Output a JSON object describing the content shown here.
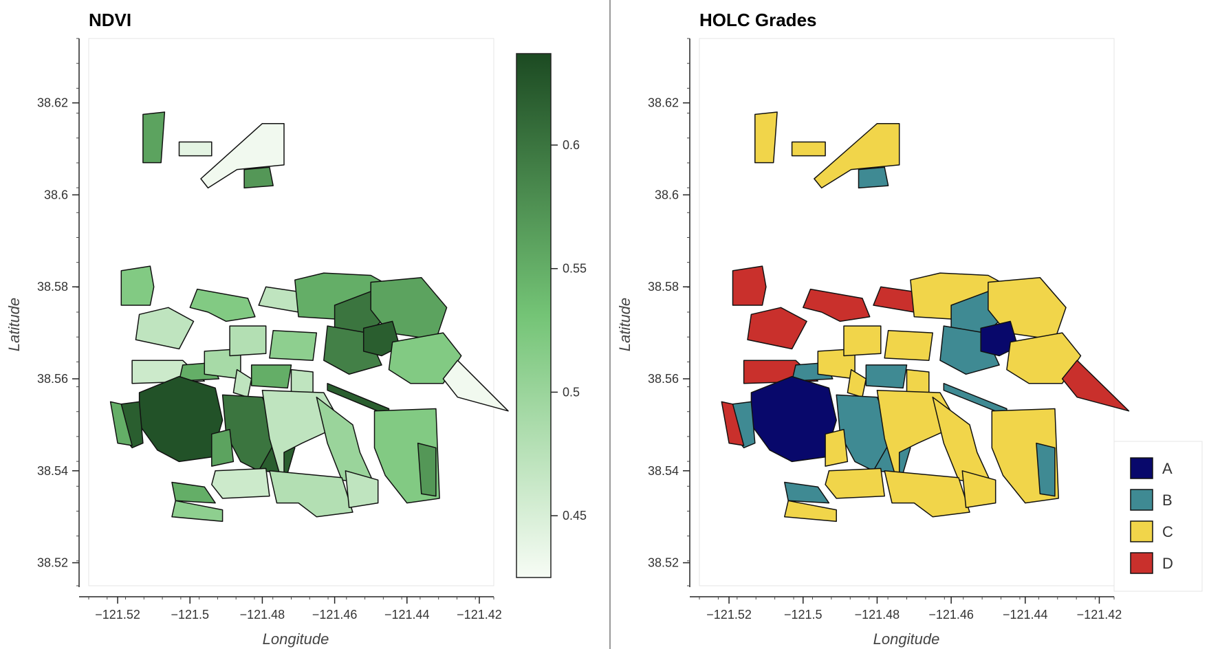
{
  "panels": [
    {
      "title": "NDVI",
      "xlabel": "Longitude",
      "ylabel": "Latitude",
      "x_ticks": [
        "−121.52",
        "−121.5",
        "−121.48",
        "−121.46",
        "−121.44",
        "−121.42"
      ],
      "y_ticks": [
        "38.52",
        "38.54",
        "38.56",
        "38.58",
        "38.6",
        "38.62"
      ],
      "colorbar": {
        "ticks": [
          "0.45",
          "0.5",
          "0.55",
          "0.6"
        ],
        "range": [
          0.425,
          0.637
        ],
        "color_low": "#f7fcf5",
        "color_mid": "#74c476",
        "color_high": "#1c4a22"
      }
    },
    {
      "title": "HOLC Grades",
      "xlabel": "Longitude",
      "ylabel": "Latitude",
      "x_ticks": [
        "−121.52",
        "−121.5",
        "−121.48",
        "−121.46",
        "−121.44",
        "−121.42"
      ],
      "y_ticks": [
        "38.52",
        "38.54",
        "38.56",
        "38.58",
        "38.6",
        "38.62"
      ],
      "legend": [
        {
          "label": "A",
          "color": "#08086b"
        },
        {
          "label": "B",
          "color": "#3f8a93"
        },
        {
          "label": "C",
          "color": "#f1d54a"
        },
        {
          "label": "D",
          "color": "#c9302c"
        }
      ]
    }
  ],
  "chart_data": {
    "type": "choropleth",
    "x_range": [
      -121.528,
      -121.416
    ],
    "y_range": [
      38.515,
      38.634
    ],
    "districts": [
      {
        "grade": "D",
        "ndvi": 0.52,
        "ring": [
          [
            -121.519,
            38.5835
          ],
          [
            -121.511,
            38.5845
          ],
          [
            -121.51,
            38.58
          ],
          [
            -121.511,
            38.576
          ],
          [
            -121.519,
            38.576
          ]
        ]
      },
      {
        "grade": "C",
        "ndvi": 0.56,
        "ring": [
          [
            -121.513,
            38.6175
          ],
          [
            -121.507,
            38.618
          ],
          [
            -121.508,
            38.607
          ],
          [
            -121.513,
            38.607
          ]
        ]
      },
      {
        "grade": "C",
        "ndvi": 0.44,
        "ring": [
          [
            -121.503,
            38.6115
          ],
          [
            -121.494,
            38.6115
          ],
          [
            -121.494,
            38.6085
          ],
          [
            -121.503,
            38.6085
          ]
        ]
      },
      {
        "grade": "C",
        "ndvi": 0.43,
        "ring": [
          [
            -121.497,
            38.6035
          ],
          [
            -121.48,
            38.6155
          ],
          [
            -121.474,
            38.6155
          ],
          [
            -121.474,
            38.6065
          ],
          [
            -121.487,
            38.6055
          ],
          [
            -121.495,
            38.6015
          ]
        ]
      },
      {
        "grade": "B",
        "ndvi": 0.57,
        "ring": [
          [
            -121.485,
            38.6055
          ],
          [
            -121.478,
            38.606
          ],
          [
            -121.477,
            38.602
          ],
          [
            -121.485,
            38.6015
          ]
        ]
      },
      {
        "grade": "D",
        "ndvi": 0.52,
        "ring": [
          [
            -121.498,
            38.5795
          ],
          [
            -121.484,
            38.5775
          ],
          [
            -121.482,
            38.5735
          ],
          [
            -121.49,
            38.5725
          ],
          [
            -121.495,
            38.5745
          ],
          [
            -121.5,
            38.5755
          ]
        ]
      },
      {
        "grade": "D",
        "ndvi": 0.47,
        "ring": [
          [
            -121.479,
            38.58
          ],
          [
            -121.462,
            38.578
          ],
          [
            -121.463,
            38.5745
          ],
          [
            -121.47,
            38.5745
          ],
          [
            -121.481,
            38.576
          ]
        ]
      },
      {
        "grade": "D",
        "ndvi": 0.47,
        "ring": [
          [
            -121.514,
            38.574
          ],
          [
            -121.506,
            38.5755
          ],
          [
            -121.499,
            38.5725
          ],
          [
            -121.503,
            38.5665
          ],
          [
            -121.515,
            38.5685
          ]
        ]
      },
      {
        "grade": "D",
        "ndvi": 0.46,
        "ring": [
          [
            -121.516,
            38.564
          ],
          [
            -121.502,
            38.564
          ],
          [
            -121.496,
            38.5595
          ],
          [
            -121.516,
            38.559
          ]
        ]
      },
      {
        "grade": "B",
        "ndvi": 0.55,
        "ring": [
          [
            -121.502,
            38.563
          ],
          [
            -121.494,
            38.5635
          ],
          [
            -121.492,
            38.56
          ],
          [
            -121.503,
            38.5595
          ]
        ]
      },
      {
        "grade": "C",
        "ndvi": 0.49,
        "ring": [
          [
            -121.496,
            38.566
          ],
          [
            -121.486,
            38.5665
          ],
          [
            -121.486,
            38.56
          ],
          [
            -121.496,
            38.561
          ]
        ]
      },
      {
        "grade": "C",
        "ndvi": 0.48,
        "ring": [
          [
            -121.489,
            38.5715
          ],
          [
            -121.479,
            38.5715
          ],
          [
            -121.479,
            38.5655
          ],
          [
            -121.489,
            38.565
          ]
        ]
      },
      {
        "grade": "C",
        "ndvi": 0.51,
        "ring": [
          [
            -121.477,
            38.5705
          ],
          [
            -121.465,
            38.57
          ],
          [
            -121.466,
            38.564
          ],
          [
            -121.478,
            38.5645
          ]
        ]
      },
      {
        "grade": "B",
        "ndvi": 0.55,
        "ring": [
          [
            -121.483,
            38.563
          ],
          [
            -121.472,
            38.563
          ],
          [
            -121.473,
            38.558
          ],
          [
            -121.483,
            38.5585
          ]
        ]
      },
      {
        "grade": "C",
        "ndvi": 0.47,
        "ring": [
          [
            -121.487,
            38.562
          ],
          [
            -121.483,
            38.56
          ],
          [
            -121.484,
            38.556
          ],
          [
            -121.488,
            38.557
          ]
        ]
      },
      {
        "grade": "C",
        "ndvi": 0.47,
        "ring": [
          [
            -121.472,
            38.562
          ],
          [
            -121.466,
            38.5615
          ],
          [
            -121.466,
            38.556
          ],
          [
            -121.472,
            38.5565
          ]
        ]
      },
      {
        "grade": "C",
        "ndvi": 0.55,
        "ring": [
          [
            -121.471,
            38.5815
          ],
          [
            -121.463,
            38.583
          ],
          [
            -121.45,
            38.5825
          ],
          [
            -121.442,
            38.579
          ],
          [
            -121.452,
            38.574
          ],
          [
            -121.46,
            38.573
          ],
          [
            -121.47,
            38.5735
          ]
        ]
      },
      {
        "grade": "B",
        "ndvi": 0.6,
        "ring": [
          [
            -121.46,
            38.576
          ],
          [
            -121.45,
            38.579
          ],
          [
            -121.445,
            38.574
          ],
          [
            -121.452,
            38.569
          ],
          [
            -121.46,
            38.5695
          ]
        ]
      },
      {
        "grade": "C",
        "ndvi": 0.56,
        "ring": [
          [
            -121.45,
            38.581
          ],
          [
            -121.436,
            38.582
          ],
          [
            -121.429,
            38.5755
          ],
          [
            -121.432,
            38.5685
          ],
          [
            -121.445,
            38.57
          ],
          [
            -121.45,
            38.575
          ]
        ]
      },
      {
        "grade": "B",
        "ndvi": 0.59,
        "ring": [
          [
            -121.462,
            38.5715
          ],
          [
            -121.451,
            38.57
          ],
          [
            -121.447,
            38.563
          ],
          [
            -121.456,
            38.561
          ],
          [
            -121.463,
            38.564
          ]
        ]
      },
      {
        "grade": "A",
        "ndvi": 0.62,
        "ring": [
          [
            -121.452,
            38.571
          ],
          [
            -121.444,
            38.5725
          ],
          [
            -121.442,
            38.567
          ],
          [
            -121.447,
            38.565
          ],
          [
            -121.452,
            38.566
          ]
        ]
      },
      {
        "grade": "C",
        "ndvi": 0.52,
        "ring": [
          [
            -121.444,
            38.568
          ],
          [
            -121.43,
            38.57
          ],
          [
            -121.425,
            38.565
          ],
          [
            -121.43,
            38.559
          ],
          [
            -121.439,
            38.559
          ],
          [
            -121.445,
            38.562
          ]
        ]
      },
      {
        "grade": "D",
        "ndvi": 0.43,
        "ring": [
          [
            -121.426,
            38.564
          ],
          [
            -121.412,
            38.553
          ],
          [
            -121.426,
            38.556
          ],
          [
            -121.43,
            38.56
          ]
        ]
      },
      {
        "grade": "B",
        "ndvi": 0.62,
        "ring": [
          [
            -121.462,
            38.559
          ],
          [
            -121.445,
            38.5535
          ],
          [
            -121.445,
            38.552
          ],
          [
            -121.462,
            38.5575
          ]
        ]
      },
      {
        "grade": "C",
        "ndvi": 0.52,
        "ring": [
          [
            -121.449,
            38.553
          ],
          [
            -121.432,
            38.5535
          ],
          [
            -121.431,
            38.534
          ],
          [
            -121.44,
            38.533
          ],
          [
            -121.446,
            38.539
          ],
          [
            -121.449,
            38.545
          ]
        ]
      },
      {
        "grade": "B",
        "ndvi": 0.57,
        "ring": [
          [
            -121.437,
            38.546
          ],
          [
            -121.432,
            38.545
          ],
          [
            -121.432,
            38.5345
          ],
          [
            -121.436,
            38.535
          ]
        ]
      },
      {
        "grade": "A",
        "ndvi": 0.63,
        "ring": [
          [
            -121.514,
            38.557
          ],
          [
            -121.503,
            38.5605
          ],
          [
            -121.493,
            38.558
          ],
          [
            -121.491,
            38.551
          ],
          [
            -121.494,
            38.543
          ],
          [
            -121.503,
            38.542
          ],
          [
            -121.509,
            38.5445
          ],
          [
            -121.514,
            38.55
          ]
        ]
      },
      {
        "grade": "B",
        "ndvi": 0.62,
        "ring": [
          [
            -121.519,
            38.5545
          ],
          [
            -121.514,
            38.555
          ],
          [
            -121.513,
            38.546
          ],
          [
            -121.516,
            38.545
          ],
          [
            -121.519,
            38.548
          ]
        ]
      },
      {
        "grade": "D",
        "ndvi": 0.55,
        "ring": [
          [
            -121.522,
            38.555
          ],
          [
            -121.519,
            38.5545
          ],
          [
            -121.516,
            38.5455
          ],
          [
            -121.52,
            38.546
          ]
        ]
      },
      {
        "grade": "B",
        "ndvi": 0.6,
        "ring": [
          [
            -121.491,
            38.5565
          ],
          [
            -121.48,
            38.556
          ],
          [
            -121.475,
            38.547
          ],
          [
            -121.481,
            38.54
          ],
          [
            -121.486,
            38.542
          ],
          [
            -121.49,
            38.548
          ]
        ]
      },
      {
        "grade": "C",
        "ndvi": 0.56,
        "ring": [
          [
            -121.494,
            38.548
          ],
          [
            -121.489,
            38.549
          ],
          [
            -121.488,
            38.542
          ],
          [
            -121.494,
            38.541
          ]
        ]
      },
      {
        "grade": "B",
        "ndvi": 0.62,
        "ring": [
          [
            -121.481,
            38.54
          ],
          [
            -121.473,
            38.5395
          ],
          [
            -121.471,
            38.545
          ],
          [
            -121.476,
            38.547
          ]
        ]
      },
      {
        "grade": "C",
        "ndvi": 0.47,
        "ring": [
          [
            -121.48,
            38.5575
          ],
          [
            -121.463,
            38.557
          ],
          [
            -121.458,
            38.55
          ],
          [
            -121.469,
            38.546
          ],
          [
            -121.474,
            38.544
          ],
          [
            -121.474,
            38.536
          ],
          [
            -121.478,
            38.547
          ]
        ]
      },
      {
        "grade": "C",
        "ndvi": 0.5,
        "ring": [
          [
            -121.465,
            38.556
          ],
          [
            -121.455,
            38.55
          ],
          [
            -121.453,
            38.544
          ],
          [
            -121.449,
            38.537
          ],
          [
            -121.458,
            38.538
          ],
          [
            -121.462,
            38.546
          ]
        ]
      },
      {
        "grade": "C",
        "ndvi": 0.48,
        "ring": [
          [
            -121.478,
            38.54
          ],
          [
            -121.458,
            38.5385
          ],
          [
            -121.455,
            38.531
          ],
          [
            -121.465,
            38.53
          ],
          [
            -121.47,
            38.533
          ],
          [
            -121.476,
            38.533
          ]
        ]
      },
      {
        "grade": "C",
        "ndvi": 0.46,
        "ring": [
          [
            -121.493,
            38.54
          ],
          [
            -121.479,
            38.5405
          ],
          [
            -121.478,
            38.5345
          ],
          [
            -121.491,
            38.534
          ],
          [
            -121.494,
            38.537
          ]
        ]
      },
      {
        "grade": "B",
        "ndvi": 0.55,
        "ring": [
          [
            -121.505,
            38.5375
          ],
          [
            -121.496,
            38.5365
          ],
          [
            -121.493,
            38.533
          ],
          [
            -121.504,
            38.5335
          ]
        ]
      },
      {
        "grade": "C",
        "ndvi": 0.51,
        "ring": [
          [
            -121.504,
            38.5335
          ],
          [
            -121.491,
            38.5315
          ],
          [
            -121.491,
            38.529
          ],
          [
            -121.505,
            38.53
          ]
        ]
      },
      {
        "grade": "C",
        "ndvi": 0.47,
        "ring": [
          [
            -121.457,
            38.54
          ],
          [
            -121.448,
            38.538
          ],
          [
            -121.448,
            38.533
          ],
          [
            -121.456,
            38.532
          ]
        ]
      }
    ]
  }
}
